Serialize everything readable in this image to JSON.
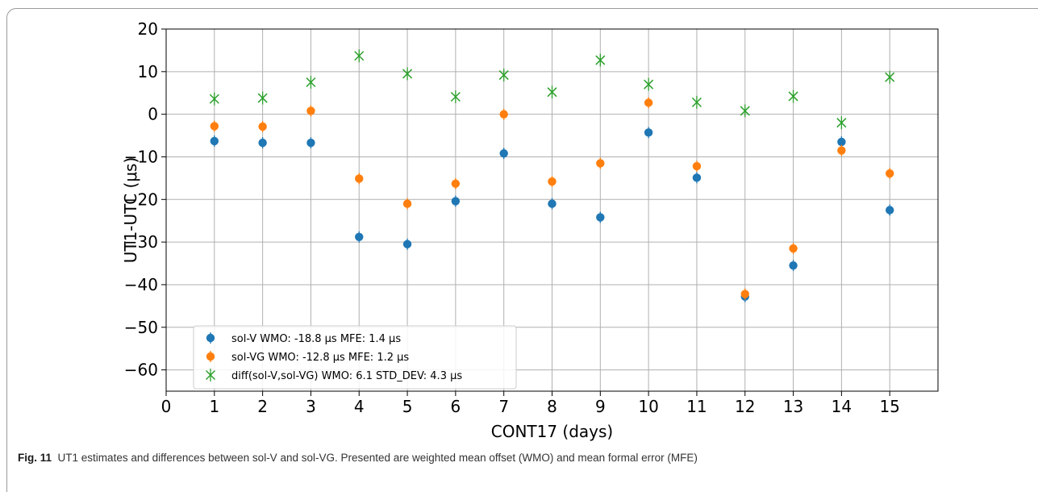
{
  "caption": {
    "label": "Fig. 11",
    "text": "UT1 estimates and differences between sol-V and sol-VG. Presented are weighted mean offset (WMO) and mean formal error (MFE)"
  },
  "chart_data": {
    "type": "scatter",
    "xlabel": "CONT17 (days)",
    "ylabel": "UT1-UTC (μs)",
    "xlim": [
      0,
      16
    ],
    "ylim": [
      -65,
      20
    ],
    "xticks": [
      0,
      1,
      2,
      3,
      4,
      5,
      6,
      7,
      8,
      9,
      10,
      11,
      12,
      13,
      14,
      15
    ],
    "yticks": [
      20,
      10,
      0,
      -10,
      -20,
      -30,
      -40,
      -50,
      -60
    ],
    "grid": true,
    "legend_position": "lower-left",
    "series": [
      {
        "name": "sol-V WMO: -18.8 μs  MFE:  1.4 μs",
        "marker": "circle-errorbar",
        "color": "#1f77b4",
        "x": [
          1,
          2,
          3,
          4,
          5,
          6,
          7,
          8,
          9,
          10,
          11,
          12,
          13,
          14,
          15
        ],
        "y": [
          -6.3,
          -6.7,
          -6.7,
          -28.8,
          -30.5,
          -20.4,
          -9.2,
          -21.0,
          -24.2,
          -4.3,
          -14.9,
          -42.8,
          -35.5,
          -6.5,
          -22.5
        ]
      },
      {
        "name": "sol-VG WMO: -12.8 μs  MFE:  1.2 μs",
        "marker": "circle-errorbar",
        "color": "#ff7f0e",
        "x": [
          1,
          2,
          3,
          4,
          5,
          6,
          7,
          8,
          9,
          10,
          11,
          12,
          13,
          14,
          15
        ],
        "y": [
          -2.8,
          -2.9,
          0.8,
          -15.1,
          -21.0,
          -16.3,
          0.0,
          -15.8,
          -11.5,
          2.7,
          -12.2,
          -42.2,
          -31.5,
          -8.5,
          -13.9
        ]
      },
      {
        "name": "diff(sol-V,sol-VG) WMO:  6.1 STD_DEV:  4.3 μs",
        "marker": "x",
        "color": "#2ca02c",
        "x": [
          1,
          2,
          3,
          4,
          5,
          6,
          7,
          8,
          9,
          10,
          11,
          12,
          13,
          14,
          15
        ],
        "y": [
          3.6,
          3.8,
          7.5,
          13.7,
          9.5,
          4.1,
          9.2,
          5.2,
          12.7,
          7.0,
          2.8,
          0.8,
          4.2,
          -2.0,
          8.7
        ]
      }
    ]
  }
}
